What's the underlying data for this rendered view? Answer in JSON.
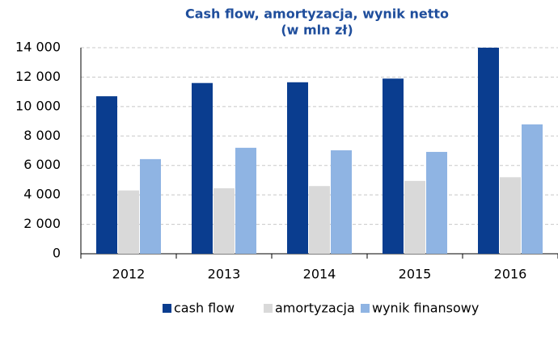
{
  "chart_data": {
    "type": "bar",
    "title": "Cash flow, amortyzacja, wynik netto",
    "subtitle": "(w mln zł)",
    "categories": [
      "2012",
      "2013",
      "2014",
      "2015",
      "2016"
    ],
    "series": [
      {
        "name": "cash flow",
        "color": "#0a3d8f",
        "values": [
          10700,
          11600,
          11650,
          11900,
          14000
        ]
      },
      {
        "name": "amortyzacja",
        "color": "#d9d9d9",
        "values": [
          4300,
          4450,
          4600,
          4950,
          5200
        ]
      },
      {
        "name": "wynik finansowy",
        "color": "#8fb4e3",
        "values": [
          6430,
          7200,
          7030,
          6920,
          8790
        ]
      }
    ],
    "ylim": [
      0,
      14000
    ],
    "yticks": [
      0,
      {
        "value": 2000,
        "label": "2 000"
      },
      {
        "value": 4000,
        "label": "4 000"
      },
      {
        "value": 6000,
        "label": "6 000"
      },
      {
        "value": 8000,
        "label": "8 000"
      },
      {
        "value": 10000,
        "label": "10 000"
      },
      {
        "value": 12000,
        "label": "12 000"
      },
      {
        "value": 14000,
        "label": "14 000"
      }
    ],
    "grid": true,
    "legend": "bottom"
  }
}
